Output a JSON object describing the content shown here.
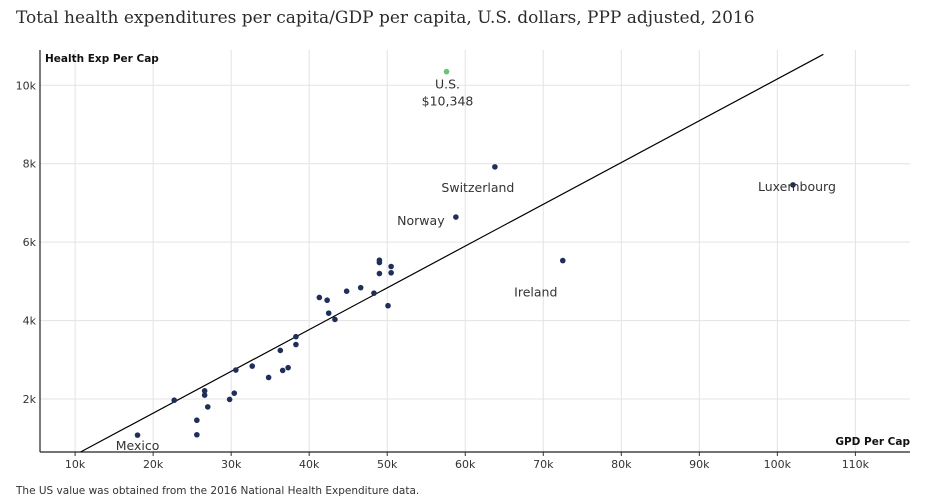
{
  "title": "Total health expenditures per capita/GDP per capita, U.S. dollars, PPP adjusted, 2016",
  "note": "The US value was obtained from the 2016 National Health Expenditure data.",
  "colors": {
    "point": "#1f2f5a",
    "us_point": "#6cc27a",
    "trend": "#000000",
    "grid": "#e3e3e3"
  },
  "chart_data": {
    "type": "scatter",
    "xlabel": "GPD Per Cap",
    "ylabel": "Health Exp Per Cap",
    "xlim": [
      5500,
      117000
    ],
    "ylim": [
      650,
      10900
    ],
    "x_ticks": [
      {
        "value": 10000,
        "label": "10k"
      },
      {
        "value": 20000,
        "label": "20k"
      },
      {
        "value": 30000,
        "label": "30k"
      },
      {
        "value": 40000,
        "label": "40k"
      },
      {
        "value": 50000,
        "label": "50k"
      },
      {
        "value": 60000,
        "label": "60k"
      },
      {
        "value": 70000,
        "label": "70k"
      },
      {
        "value": 80000,
        "label": "80k"
      },
      {
        "value": 90000,
        "label": "90k"
      },
      {
        "value": 100000,
        "label": "100k"
      },
      {
        "value": 110000,
        "label": "110k"
      }
    ],
    "y_ticks": [
      {
        "value": 2000,
        "label": "2k"
      },
      {
        "value": 4000,
        "label": "4k"
      },
      {
        "value": 6000,
        "label": "6k"
      },
      {
        "value": 8000,
        "label": "8k"
      },
      {
        "value": 10000,
        "label": "10k"
      }
    ],
    "grid": true,
    "points": [
      {
        "x": 18000,
        "y": 1080
      },
      {
        "x": 22700,
        "y": 1970
      },
      {
        "x": 25600,
        "y": 1460
      },
      {
        "x": 25600,
        "y": 1090
      },
      {
        "x": 26600,
        "y": 2210
      },
      {
        "x": 26600,
        "y": 2100
      },
      {
        "x": 27000,
        "y": 1800
      },
      {
        "x": 29800,
        "y": 1990
      },
      {
        "x": 30400,
        "y": 2150
      },
      {
        "x": 30600,
        "y": 2740
      },
      {
        "x": 32700,
        "y": 2840
      },
      {
        "x": 34800,
        "y": 2550
      },
      {
        "x": 36300,
        "y": 3240
      },
      {
        "x": 36600,
        "y": 2730
      },
      {
        "x": 37300,
        "y": 2800
      },
      {
        "x": 38300,
        "y": 3590
      },
      {
        "x": 38300,
        "y": 3390
      },
      {
        "x": 41300,
        "y": 4590
      },
      {
        "x": 42300,
        "y": 4520
      },
      {
        "x": 42500,
        "y": 4190
      },
      {
        "x": 43300,
        "y": 4030
      },
      {
        "x": 44800,
        "y": 4750
      },
      {
        "x": 46600,
        "y": 4840
      },
      {
        "x": 48300,
        "y": 4700
      },
      {
        "x": 49000,
        "y": 5540
      },
      {
        "x": 49000,
        "y": 5480
      },
      {
        "x": 49000,
        "y": 5200
      },
      {
        "x": 50100,
        "y": 4380
      },
      {
        "x": 50500,
        "y": 5380
      },
      {
        "x": 50500,
        "y": 5220
      },
      {
        "x": 58800,
        "y": 6640
      },
      {
        "x": 63800,
        "y": 7920
      },
      {
        "x": 72500,
        "y": 5530
      },
      {
        "x": 102000,
        "y": 7460
      }
    ],
    "highlight": {
      "x": 57600,
      "y": 10348,
      "label": "U.S.",
      "value_label": "$10,348"
    },
    "trend_line": [
      {
        "x": 10700,
        "y": 650
      },
      {
        "x": 105900,
        "y": 10790
      }
    ],
    "annotations": [
      {
        "text": "Mexico",
        "x": 18000,
        "y": 1080
      },
      {
        "text": "Switzerland",
        "x": 63800,
        "y": 7920
      },
      {
        "text": "Norway",
        "x": 58800,
        "y": 6640
      },
      {
        "text": "Ireland",
        "x": 72500,
        "y": 5530
      },
      {
        "text": "Luxembourg",
        "x": 102000,
        "y": 7460
      }
    ]
  }
}
